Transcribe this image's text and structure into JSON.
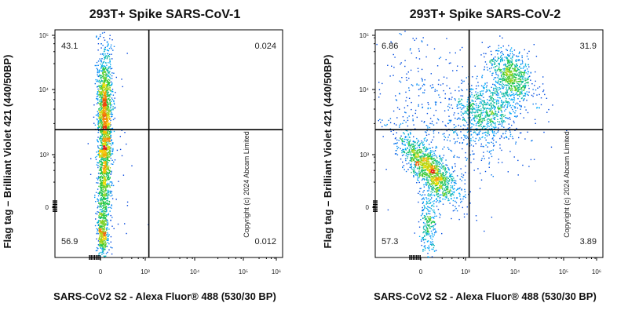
{
  "chart_data": [
    {
      "type": "scatter",
      "title": "293T+ Spike SARS-CoV-1",
      "xlabel": "SARS-CoV2 S2 - Alexa Fluor® 488 (530/30 BP)",
      "ylabel": "Flag tag – Brilliant Violet 421 (440/50BP)",
      "watermark": "Copyright (c) 2024 Abcam Limited",
      "x_scale": "biexponential",
      "y_scale": "biexponential",
      "x_ticks": [
        "0",
        "10³",
        "10⁴",
        "10⁵",
        "10⁶"
      ],
      "y_ticks": [
        "0",
        "10³",
        "10⁴",
        "10⁵"
      ],
      "gate": {
        "x": 1200,
        "y": 2500
      },
      "quadrants": {
        "top_left": "43.1",
        "top_right": "0.024",
        "bottom_left": "56.9",
        "bottom_right": "0.012"
      },
      "seed": 11
    },
    {
      "type": "scatter",
      "title": "293T+ Spike SARS-CoV-2",
      "xlabel": "SARS-CoV2 S2 - Alexa Fluor® 488 (530/30 BP)",
      "ylabel": "Flag tag – Brilliant Violet 421 (440/50BP)",
      "watermark": "Copyright (c) 2024 Abcam Limited",
      "x_scale": "biexponential",
      "y_scale": "biexponential",
      "x_ticks": [
        "0",
        "10³",
        "10⁴",
        "10⁵",
        "10⁶"
      ],
      "y_ticks": [
        "0",
        "10³",
        "10⁴",
        "10⁵"
      ],
      "gate": {
        "x": 1200,
        "y": 2500
      },
      "quadrants": {
        "top_left": "6.86",
        "top_right": "31.9",
        "bottom_left": "57.3",
        "bottom_right": "3.89"
      },
      "seed": 29
    }
  ]
}
